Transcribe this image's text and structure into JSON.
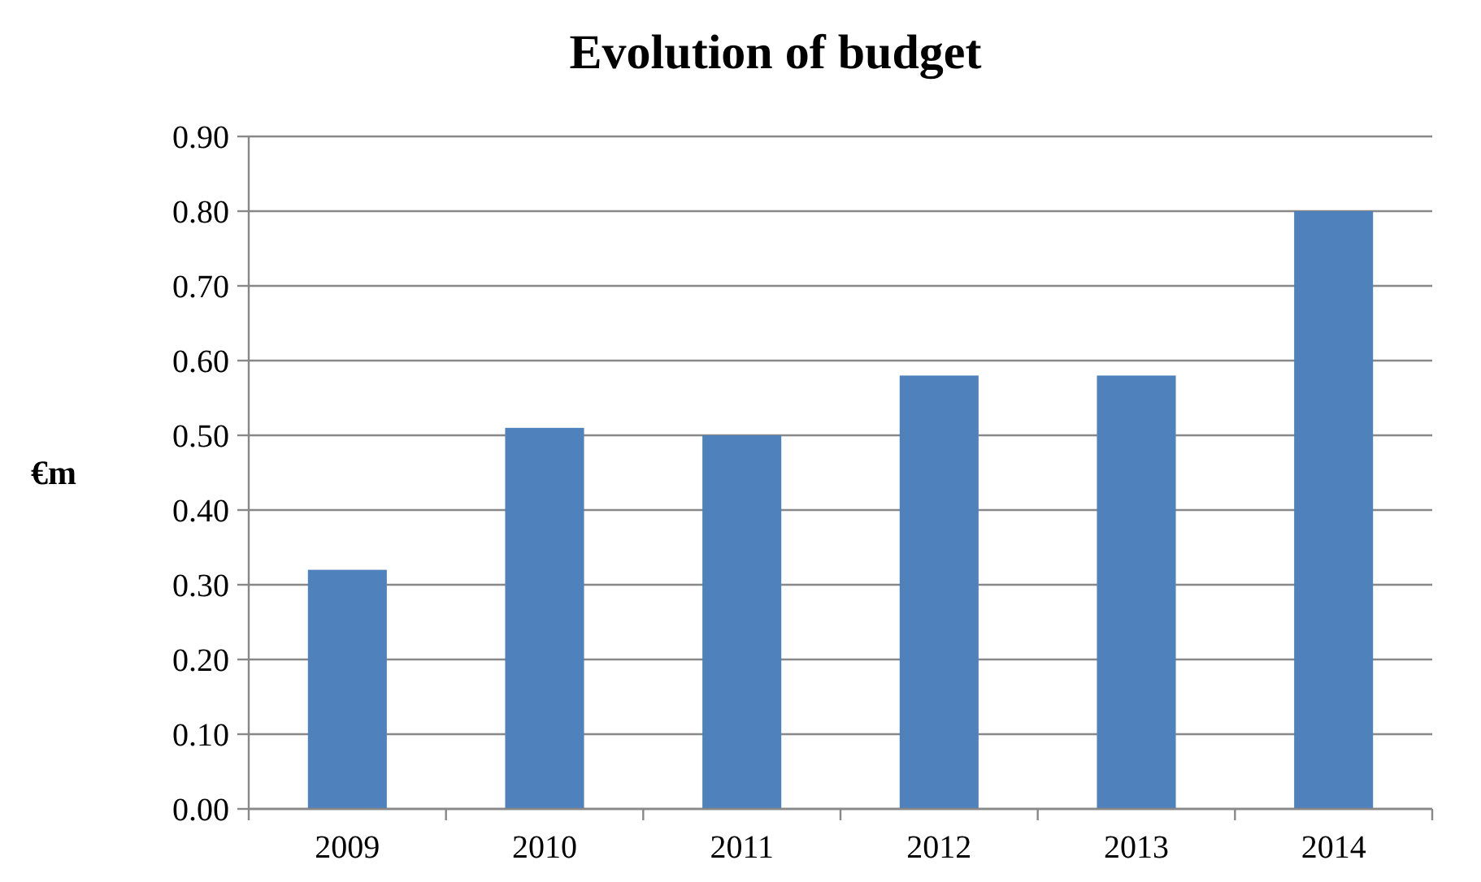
{
  "chart_data": {
    "type": "bar",
    "title": "Evolution of budget",
    "ylabel": "€m",
    "categories": [
      "2009",
      "2010",
      "2011",
      "2012",
      "2013",
      "2014"
    ],
    "values": [
      0.32,
      0.51,
      0.5,
      0.58,
      0.58,
      0.8
    ],
    "color": "#4f81bd",
    "ylim": [
      0,
      0.9
    ],
    "yticks": [
      {
        "value": 0,
        "label": "0.00"
      },
      {
        "value": 0.1,
        "label": "0.10"
      },
      {
        "value": 0.2,
        "label": "0.20"
      },
      {
        "value": 0.3,
        "label": "0.30"
      },
      {
        "value": 0.4,
        "label": "0.40"
      },
      {
        "value": 0.5,
        "label": "0.50"
      },
      {
        "value": 0.6,
        "label": "0.60"
      },
      {
        "value": 0.7,
        "label": "0.70"
      },
      {
        "value": 0.8,
        "label": "0.80"
      },
      {
        "value": 0.9,
        "label": "0.90"
      }
    ],
    "grid": "y"
  }
}
